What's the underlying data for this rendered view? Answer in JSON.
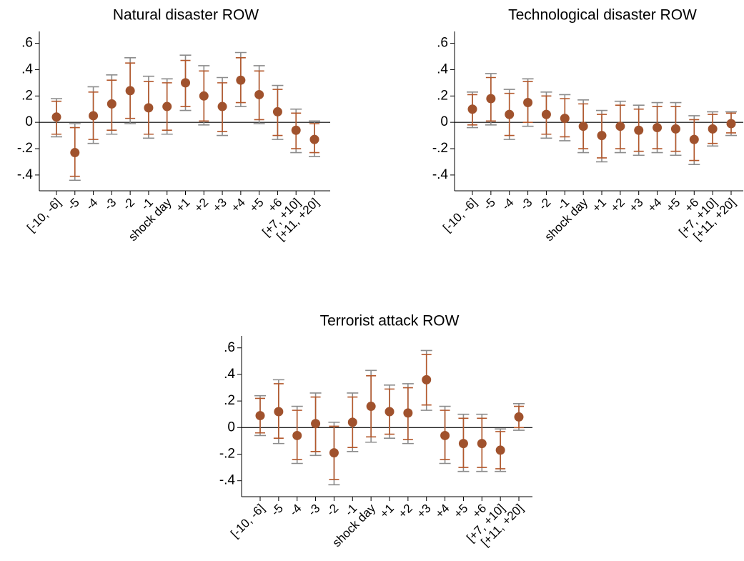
{
  "chart_data": [
    {
      "type": "errorbar",
      "title": "Natural disaster ROW",
      "categories": [
        "[-10, -6]",
        "-5",
        "-4",
        "-3",
        "-2",
        "-1",
        "shock day",
        "+1",
        "+2",
        "+3",
        "+4",
        "+5",
        "+6",
        "[+7, +10]",
        "[+11, +20]"
      ],
      "values": [
        0.04,
        -0.23,
        0.05,
        0.14,
        0.24,
        0.11,
        0.12,
        0.3,
        0.2,
        0.12,
        0.32,
        0.21,
        0.08,
        -0.06,
        -0.13
      ],
      "color": "#a0522d",
      "ci95": {
        "color": "#8c8c8c",
        "low": [
          -0.11,
          -0.44,
          -0.16,
          -0.09,
          -0.01,
          -0.12,
          -0.09,
          0.09,
          -0.02,
          -0.1,
          0.12,
          -0.01,
          -0.13,
          -0.23,
          -0.26
        ],
        "high": [
          0.18,
          -0.01,
          0.27,
          0.36,
          0.49,
          0.35,
          0.33,
          0.51,
          0.43,
          0.34,
          0.53,
          0.43,
          0.28,
          0.1,
          0.01
        ]
      },
      "ci90": {
        "color": "#b3582c",
        "low": [
          -0.09,
          -0.41,
          -0.13,
          -0.06,
          0.03,
          -0.09,
          -0.06,
          0.12,
          0.01,
          -0.07,
          0.15,
          0.02,
          -0.1,
          -0.2,
          -0.23
        ],
        "high": [
          0.16,
          -0.04,
          0.23,
          0.32,
          0.45,
          0.31,
          0.3,
          0.47,
          0.39,
          0.3,
          0.49,
          0.39,
          0.25,
          0.07,
          -0.01
        ]
      },
      "refline": 0,
      "ylim": [
        -0.52,
        0.69
      ],
      "yticks": [
        {
          "value": -0.4,
          "label": "-.4"
        },
        {
          "value": -0.2,
          "label": "-.2"
        },
        0,
        {
          "value": 0.2,
          "label": ".2"
        },
        {
          "value": 0.4,
          "label": ".4"
        },
        {
          "value": 0.6,
          "label": ".6"
        }
      ]
    },
    {
      "type": "errorbar",
      "title": "Technological disaster ROW",
      "categories": [
        "[-10, -6]",
        "-5",
        "-4",
        "-3",
        "-2",
        "-1",
        "shock day",
        "+1",
        "+2",
        "+3",
        "+4",
        "+5",
        "+6",
        "[+7, +10]",
        "[+11, +20]"
      ],
      "values": [
        0.1,
        0.18,
        0.06,
        0.15,
        0.06,
        0.03,
        -0.03,
        -0.1,
        -0.03,
        -0.06,
        -0.04,
        -0.05,
        -0.13,
        -0.05,
        -0.01
      ],
      "color": "#a0522d",
      "ci95": {
        "color": "#8c8c8c",
        "low": [
          -0.04,
          -0.02,
          -0.13,
          -0.03,
          -0.12,
          -0.14,
          -0.23,
          -0.3,
          -0.23,
          -0.25,
          -0.23,
          -0.25,
          -0.32,
          -0.18,
          -0.1
        ],
        "high": [
          0.23,
          0.37,
          0.25,
          0.33,
          0.23,
          0.21,
          0.17,
          0.09,
          0.16,
          0.13,
          0.15,
          0.15,
          0.05,
          0.08,
          0.08
        ]
      },
      "ci90": {
        "color": "#b3582c",
        "low": [
          -0.02,
          0.01,
          -0.1,
          0.0,
          -0.09,
          -0.11,
          -0.2,
          -0.27,
          -0.2,
          -0.22,
          -0.2,
          -0.22,
          -0.29,
          -0.16,
          -0.08
        ],
        "high": [
          0.21,
          0.34,
          0.22,
          0.31,
          0.2,
          0.18,
          0.14,
          0.06,
          0.13,
          0.1,
          0.12,
          0.12,
          0.02,
          0.06,
          0.07
        ]
      },
      "refline": 0,
      "ylim": [
        -0.52,
        0.69
      ],
      "yticks": [
        {
          "value": -0.4,
          "label": "-.4"
        },
        {
          "value": -0.2,
          "label": "-.2"
        },
        0,
        {
          "value": 0.2,
          "label": ".2"
        },
        {
          "value": 0.4,
          "label": ".4"
        },
        {
          "value": 0.6,
          "label": ".6"
        }
      ]
    },
    {
      "type": "errorbar",
      "title": "Terrorist attack ROW",
      "categories": [
        "[-10, -6]",
        "-5",
        "-4",
        "-3",
        "-2",
        "-1",
        "shock day",
        "+1",
        "+2",
        "+3",
        "+4",
        "+5",
        "+6",
        "[+7, +10]",
        "[+11, +20]"
      ],
      "values": [
        0.09,
        0.12,
        -0.06,
        0.03,
        -0.19,
        0.04,
        0.16,
        0.12,
        0.11,
        0.36,
        -0.06,
        -0.12,
        -0.12,
        -0.17,
        0.08
      ],
      "color": "#a0522d",
      "ci95": {
        "color": "#8c8c8c",
        "low": [
          -0.06,
          -0.12,
          -0.27,
          -0.21,
          -0.43,
          -0.18,
          -0.11,
          -0.08,
          -0.12,
          0.13,
          -0.27,
          -0.33,
          -0.33,
          -0.33,
          -0.02
        ],
        "high": [
          0.24,
          0.36,
          0.16,
          0.26,
          0.04,
          0.26,
          0.43,
          0.32,
          0.33,
          0.58,
          0.16,
          0.1,
          0.1,
          -0.01,
          0.18
        ]
      },
      "ci90": {
        "color": "#b3582c",
        "low": [
          -0.04,
          -0.08,
          -0.24,
          -0.18,
          -0.39,
          -0.15,
          -0.07,
          -0.05,
          -0.09,
          0.17,
          -0.24,
          -0.3,
          -0.3,
          -0.31,
          0.0
        ],
        "high": [
          0.22,
          0.33,
          0.13,
          0.23,
          0.01,
          0.23,
          0.39,
          0.29,
          0.3,
          0.55,
          0.13,
          0.07,
          0.07,
          -0.03,
          0.16
        ]
      },
      "refline": 0,
      "ylim": [
        -0.52,
        0.69
      ],
      "yticks": [
        {
          "value": -0.4,
          "label": "-.4"
        },
        {
          "value": -0.2,
          "label": "-.2"
        },
        0,
        {
          "value": 0.2,
          "label": ".2"
        },
        {
          "value": 0.4,
          "label": ".4"
        },
        {
          "value": 0.6,
          "label": ".6"
        }
      ]
    }
  ]
}
